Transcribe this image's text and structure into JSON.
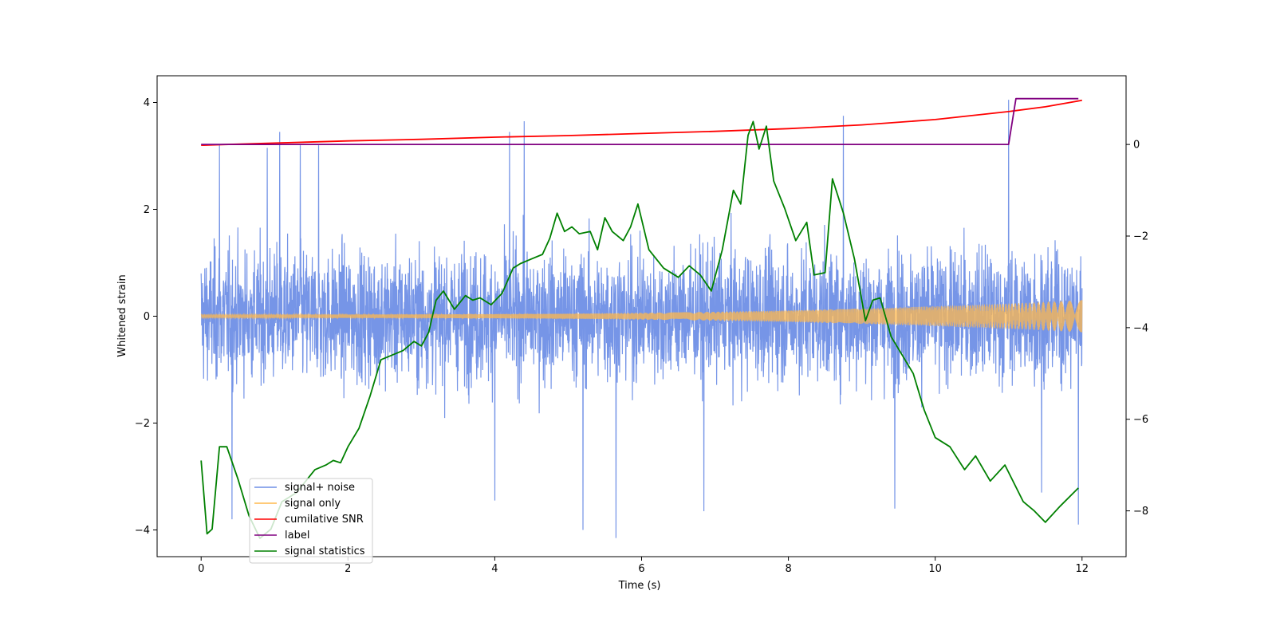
{
  "chart_data": {
    "type": "line",
    "title": "",
    "xlabel": "Time (s)",
    "ylabel": "Whitened strain",
    "xlim": [
      -0.6,
      12.6
    ],
    "ylim": [
      -4.5,
      4.5
    ],
    "y2lim": [
      -9.0,
      1.5
    ],
    "xticks": [
      0,
      2,
      4,
      6,
      8,
      10,
      12
    ],
    "yticks": [
      -4,
      -2,
      0,
      2,
      4
    ],
    "y2ticks": [
      -8,
      -6,
      -4,
      -2,
      0
    ],
    "legend_position": "lower-left",
    "series": [
      {
        "name": "signal+ noise",
        "axis": "left",
        "color": "#6f8fe6",
        "kind": "noisy-band",
        "x_range": [
          0,
          12
        ],
        "typical_amplitude": [
          -2.3,
          2.4
        ],
        "peaks": [
          {
            "x": 0.25,
            "y": 3.2
          },
          {
            "x": 0.9,
            "y": 3.15
          },
          {
            "x": 1.07,
            "y": 3.45
          },
          {
            "x": 1.35,
            "y": 3.2
          },
          {
            "x": 1.6,
            "y": 3.2
          },
          {
            "x": 4.4,
            "y": 3.65
          },
          {
            "x": 4.2,
            "y": 3.45
          },
          {
            "x": 8.75,
            "y": 3.75
          },
          {
            "x": 11.0,
            "y": 4.05
          },
          {
            "x": 5.65,
            "y": -4.15
          },
          {
            "x": 5.2,
            "y": -4.0
          },
          {
            "x": 4.0,
            "y": -3.45
          },
          {
            "x": 0.42,
            "y": -3.8
          },
          {
            "x": 11.95,
            "y": -3.9
          },
          {
            "x": 9.45,
            "y": -3.6
          },
          {
            "x": 6.85,
            "y": -3.65
          },
          {
            "x": 11.45,
            "y": -3.3
          }
        ]
      },
      {
        "name": "signal only",
        "axis": "left",
        "color": "#ffb84d",
        "kind": "chirp",
        "x_range": [
          0,
          12
        ],
        "amplitude_start": 0.03,
        "amplitude_end": 0.3
      },
      {
        "name": "cumilative SNR",
        "axis": "left",
        "color": "#ff0000",
        "x": [
          0,
          1,
          2,
          3,
          4,
          5,
          6,
          7,
          8,
          9,
          10,
          11,
          11.5,
          12
        ],
        "y": [
          3.2,
          3.24,
          3.28,
          3.31,
          3.35,
          3.38,
          3.42,
          3.46,
          3.51,
          3.58,
          3.68,
          3.83,
          3.92,
          4.04
        ]
      },
      {
        "name": "label",
        "axis": "right",
        "color": "#800080",
        "x": [
          0,
          11.0,
          11.1,
          11.95
        ],
        "y": [
          0,
          0,
          1,
          1
        ]
      },
      {
        "name": "signal statistics",
        "axis": "right",
        "color": "#008000",
        "x": [
          0,
          0.08,
          0.15,
          0.25,
          0.35,
          0.5,
          0.65,
          0.8,
          0.95,
          1.1,
          1.3,
          1.55,
          1.7,
          1.8,
          1.9,
          2.0,
          2.15,
          2.3,
          2.45,
          2.6,
          2.75,
          2.9,
          3.0,
          3.1,
          3.2,
          3.3,
          3.45,
          3.6,
          3.7,
          3.8,
          3.95,
          4.1,
          4.25,
          4.35,
          4.5,
          4.65,
          4.75,
          4.85,
          4.95,
          5.05,
          5.15,
          5.3,
          5.4,
          5.5,
          5.6,
          5.75,
          5.85,
          5.95,
          6.1,
          6.3,
          6.5,
          6.65,
          6.8,
          6.95,
          7.1,
          7.25,
          7.35,
          7.45,
          7.52,
          7.6,
          7.7,
          7.8,
          7.95,
          8.1,
          8.25,
          8.35,
          8.5,
          8.6,
          8.75,
          8.9,
          9.05,
          9.15,
          9.25,
          9.4,
          9.55,
          9.7,
          9.85,
          10.0,
          10.2,
          10.4,
          10.55,
          10.75,
          10.95,
          11.2,
          11.35,
          11.5,
          11.7,
          11.95
        ],
        "y": [
          -6.9,
          -8.5,
          -8.4,
          -6.6,
          -6.6,
          -7.3,
          -8.1,
          -8.6,
          -8.4,
          -7.8,
          -7.6,
          -7.1,
          -7.0,
          -6.9,
          -6.95,
          -6.6,
          -6.2,
          -5.5,
          -4.7,
          -4.6,
          -4.5,
          -4.3,
          -4.4,
          -4.1,
          -3.4,
          -3.2,
          -3.6,
          -3.3,
          -3.4,
          -3.35,
          -3.5,
          -3.25,
          -2.7,
          -2.6,
          -2.5,
          -2.4,
          -2.05,
          -1.5,
          -1.9,
          -1.8,
          -1.95,
          -1.9,
          -2.3,
          -1.6,
          -1.9,
          -2.1,
          -1.8,
          -1.3,
          -2.3,
          -2.7,
          -2.9,
          -2.65,
          -2.85,
          -3.2,
          -2.3,
          -1.0,
          -1.3,
          0.2,
          0.5,
          -0.1,
          0.4,
          -0.8,
          -1.4,
          -2.1,
          -1.7,
          -2.85,
          -2.8,
          -0.75,
          -1.5,
          -2.5,
          -3.85,
          -3.4,
          -3.35,
          -4.2,
          -4.6,
          -5.0,
          -5.8,
          -6.4,
          -6.6,
          -7.1,
          -6.8,
          -7.35,
          -7.0,
          -7.8,
          -8.0,
          -8.25,
          -7.9,
          -7.5
        ]
      }
    ]
  }
}
